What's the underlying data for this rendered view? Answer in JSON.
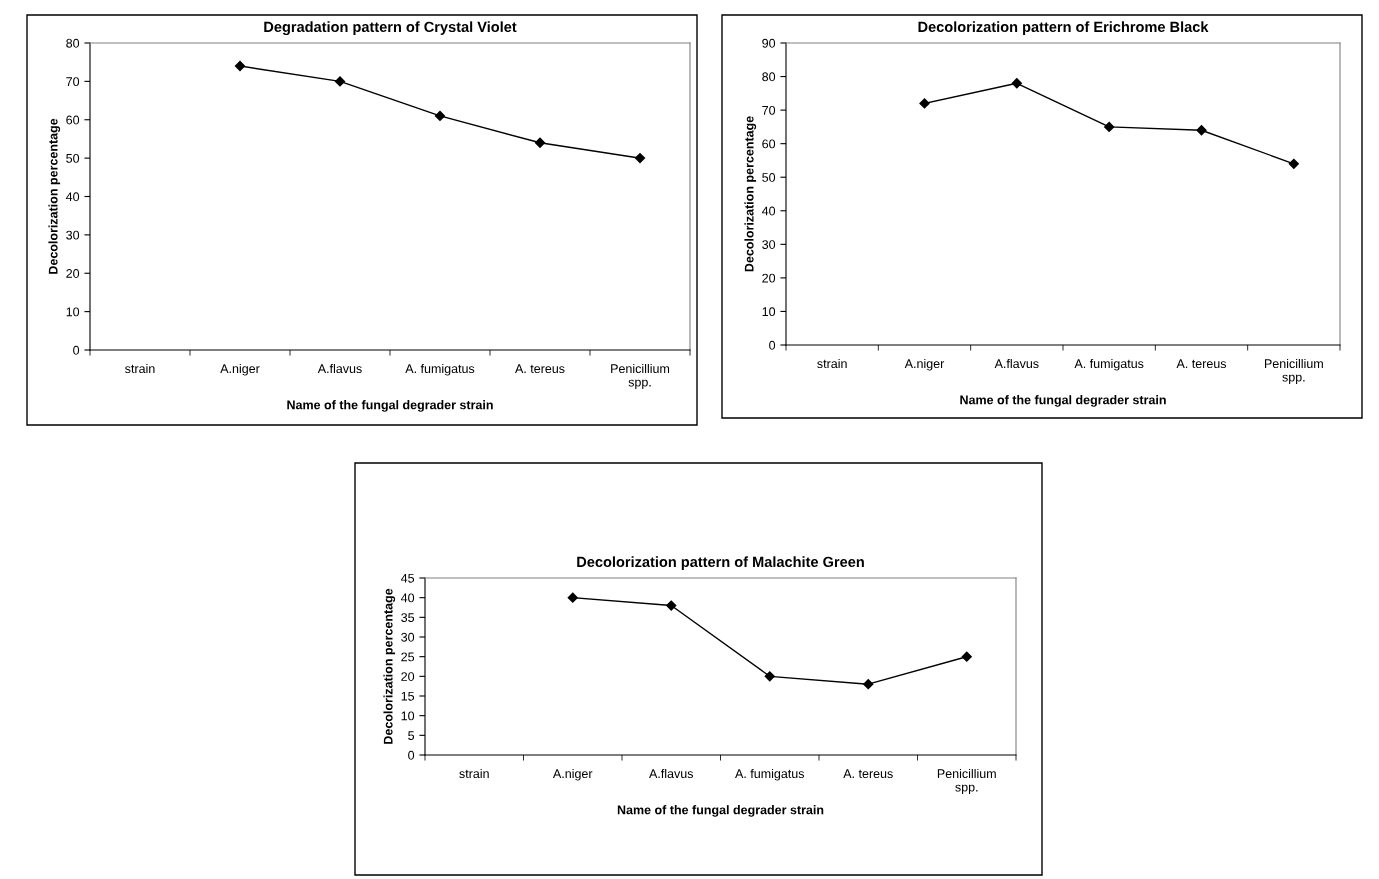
{
  "chart_data": [
    {
      "type": "line",
      "title": "Degradation pattern of Crystal Violet",
      "xlabel": "Name of the fungal degrader strain",
      "ylabel": "Decolorization percentage",
      "categories": [
        "strain",
        "A.niger",
        "A.flavus",
        "A. fumigatus",
        "A. tereus",
        "Penicillium spp."
      ],
      "series": [
        {
          "color": "#000000",
          "values": [
            null,
            74,
            70,
            61,
            54,
            50
          ]
        }
      ],
      "ylim": [
        0,
        80
      ],
      "yticks": [
        0,
        10,
        20,
        30,
        40,
        50,
        60,
        70,
        80
      ],
      "marker": "diamond",
      "line_style": "solid",
      "grid": false,
      "legend": false
    },
    {
      "type": "line",
      "title": "Decolorization pattern of Erichrome Black",
      "xlabel": "Name of the fungal degrader strain",
      "ylabel": "Decolorization percentage",
      "categories": [
        "strain",
        "A.niger",
        "A.flavus",
        "A. fumigatus",
        "A. tereus",
        "Penicillium spp."
      ],
      "series": [
        {
          "color": "#000000",
          "values": [
            null,
            72,
            78,
            65,
            64,
            54
          ]
        }
      ],
      "ylim": [
        0,
        90
      ],
      "yticks": [
        0,
        10,
        20,
        30,
        40,
        50,
        60,
        70,
        80,
        90
      ],
      "marker": "diamond",
      "line_style": "solid",
      "grid": false,
      "legend": false
    },
    {
      "type": "line",
      "title": "Decolorization pattern of Malachite Green",
      "xlabel": "Name of the fungal degrader strain",
      "ylabel": "Decolorization percentage",
      "categories": [
        "strain",
        "A.niger",
        "A.flavus",
        "A. fumigatus",
        "A. tereus",
        "Penicillium spp."
      ],
      "series": [
        {
          "color": "#000000",
          "values": [
            null,
            40,
            38,
            20,
            18,
            25
          ]
        }
      ],
      "ylim": [
        0,
        45
      ],
      "yticks": [
        0,
        5,
        10,
        15,
        20,
        25,
        30,
        35,
        40,
        45
      ],
      "marker": "diamond",
      "line_style": "solid",
      "grid": false,
      "legend": false
    }
  ]
}
